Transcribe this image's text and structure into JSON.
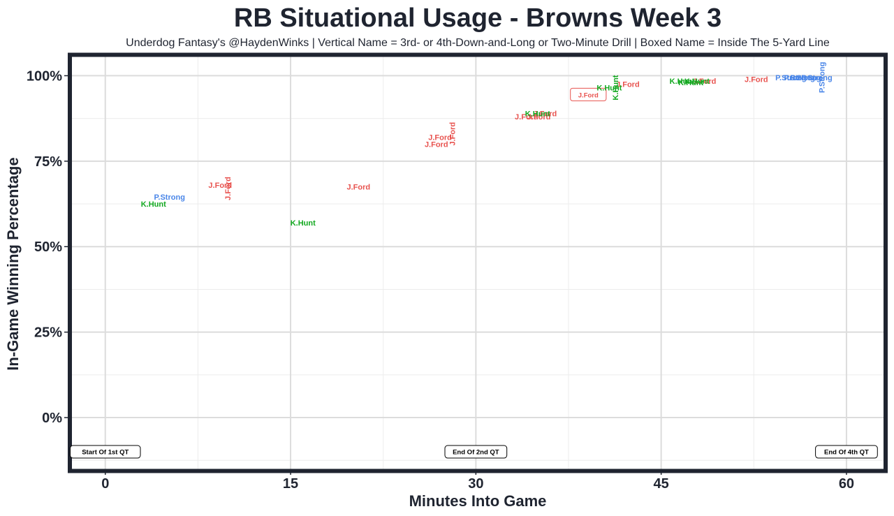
{
  "chart_data": {
    "type": "scatter",
    "title": "RB Situational Usage - Browns Week 3",
    "subtitle": "Underdog Fantasy's @HaydenWinks | Vertical Name = 3rd- or 4th-Down-and-Long or Two-Minute Drill | Boxed Name = Inside The 5-Yard Line",
    "xlabel": "Minutes Into Game",
    "ylabel": "In-Game Winning Percentage",
    "xlim": [
      -2.7,
      63
    ],
    "ylim": [
      -15,
      105.5
    ],
    "x_ticks": [
      0,
      15,
      30,
      45,
      60
    ],
    "x_tick_labels": [
      "0",
      "15",
      "30",
      "45",
      "60"
    ],
    "y_ticks": [
      0,
      25,
      50,
      75,
      100
    ],
    "y_tick_labels": [
      "0%",
      "25%",
      "50%",
      "75%",
      "100%"
    ],
    "grid": true,
    "colors": {
      "J.Ford": "#e8534f",
      "K.Hunt": "#12a81f",
      "P.Strong": "#4a86e8"
    },
    "series": [
      {
        "name": "J.Ford",
        "points": [
          {
            "x": 9.3,
            "y": 68,
            "label": "J.Ford"
          },
          {
            "x": 9.9,
            "y": 67,
            "label": "J.Ford",
            "vertical": true
          },
          {
            "x": 20.5,
            "y": 67.5,
            "label": "J.Ford"
          },
          {
            "x": 26.8,
            "y": 80,
            "label": "J.Ford"
          },
          {
            "x": 27.1,
            "y": 82,
            "label": "J.Ford"
          },
          {
            "x": 28.1,
            "y": 83,
            "label": "J.Ford",
            "vertical": true
          },
          {
            "x": 34.1,
            "y": 88,
            "label": "J.Ford"
          },
          {
            "x": 35.1,
            "y": 88,
            "label": "J.Ford"
          },
          {
            "x": 35.6,
            "y": 89,
            "label": "J.Ford"
          },
          {
            "x": 39.1,
            "y": 94.5,
            "label": "J.Ford",
            "boxed": true
          },
          {
            "x": 42.3,
            "y": 97.5,
            "label": "J.Ford"
          },
          {
            "x": 48.5,
            "y": 98.5,
            "label": "J.Ford"
          },
          {
            "x": 52.7,
            "y": 99,
            "label": "J.Ford"
          }
        ]
      },
      {
        "name": "K.Hunt",
        "points": [
          {
            "x": 3.9,
            "y": 62.5,
            "label": "K.Hunt"
          },
          {
            "x": 16.0,
            "y": 57,
            "label": "K.Hunt"
          },
          {
            "x": 35.0,
            "y": 89,
            "label": "K.Hunt"
          },
          {
            "x": 40.8,
            "y": 96.5,
            "label": "K.Hunt"
          },
          {
            "x": 41.3,
            "y": 96.5,
            "label": "K.Hunt",
            "vertical": true
          },
          {
            "x": 47.4,
            "y": 98,
            "label": "K.Hunt"
          },
          {
            "x": 46.7,
            "y": 98.5,
            "label": "K.Hunt"
          },
          {
            "x": 47.9,
            "y": 98.5,
            "label": "K.Hunt"
          }
        ]
      },
      {
        "name": "P.Strong",
        "points": [
          {
            "x": 5.2,
            "y": 64.5,
            "label": "P.Strong"
          },
          {
            "x": 55.5,
            "y": 99.5,
            "label": "P.Strong"
          },
          {
            "x": 56.2,
            "y": 99.5,
            "label": "P.Strong"
          },
          {
            "x": 56.7,
            "y": 99.5,
            "label": "P.Strong"
          },
          {
            "x": 57.6,
            "y": 99.5,
            "label": "P.Strong"
          },
          {
            "x": 58.0,
            "y": 99.5,
            "label": "P.Strong",
            "vertical": true
          }
        ]
      }
    ],
    "annotations": [
      {
        "x": 0,
        "y": -10,
        "text": "Start Of 1st QT"
      },
      {
        "x": 30,
        "y": -10,
        "text": "End Of 2nd QT"
      },
      {
        "x": 60,
        "y": -10,
        "text": "End Of 4th QT"
      }
    ]
  }
}
